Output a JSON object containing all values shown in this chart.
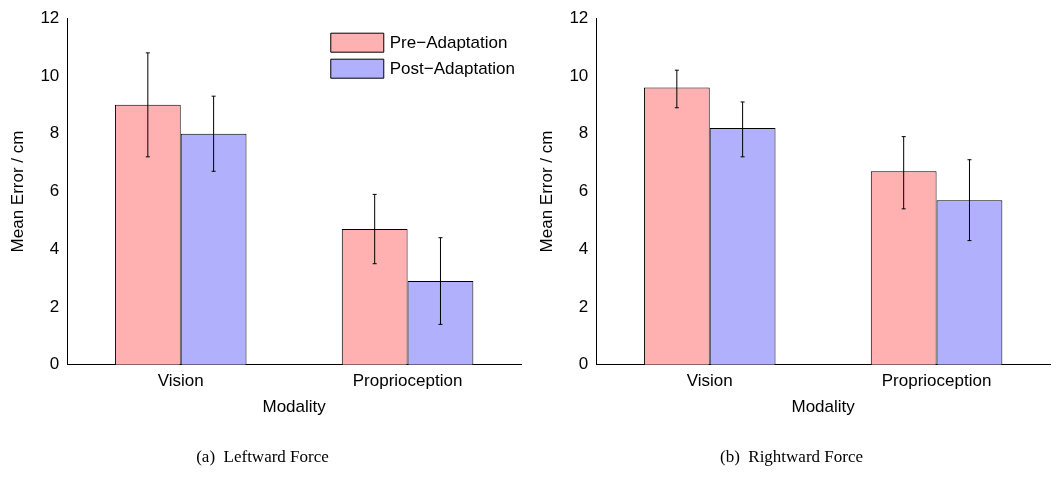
{
  "chart_data": [
    {
      "type": "bar",
      "title": "(a)  Leftward Force",
      "xlabel": "Modality",
      "ylabel": "Mean Error / cm",
      "categories": [
        "Vision",
        "Proprioception"
      ],
      "ylim": [
        0,
        12
      ],
      "yticks": [
        0,
        2,
        4,
        6,
        8,
        10,
        12
      ],
      "grid": false,
      "legend": "top right",
      "series": [
        {
          "name": "Pre−Adaptation",
          "color": "#ffb0b0",
          "values": [
            9.0,
            4.7
          ],
          "errors": [
            [
              7.2,
              10.8
            ],
            [
              3.5,
              5.9
            ]
          ]
        },
        {
          "name": "Post−Adaptation",
          "color": "#b0b0fc",
          "values": [
            8.0,
            2.9
          ],
          "errors": [
            [
              6.7,
              9.3
            ],
            [
              1.4,
              4.4
            ]
          ]
        }
      ]
    },
    {
      "type": "bar",
      "title": "(b)  Rightward Force",
      "xlabel": "Modality",
      "ylabel": "Mean Error / cm",
      "categories": [
        "Vision",
        "Proprioception"
      ],
      "ylim": [
        0,
        12
      ],
      "yticks": [
        0,
        2,
        4,
        6,
        8,
        10,
        12
      ],
      "grid": false,
      "series": [
        {
          "color": "#ffb0b0",
          "values": [
            9.6,
            6.7
          ],
          "errors": [
            [
              8.9,
              10.2
            ],
            [
              5.4,
              7.9
            ]
          ]
        },
        {
          "color": "#b0b0fc",
          "values": [
            8.2,
            5.7
          ],
          "errors": [
            [
              7.2,
              9.1
            ],
            [
              4.3,
              7.1
            ]
          ]
        }
      ]
    }
  ]
}
